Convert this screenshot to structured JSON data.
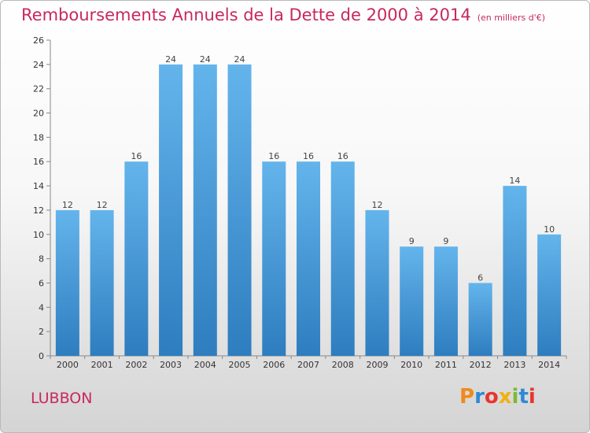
{
  "title": "Remboursements Annuels de la Dette de 2000 à 2014",
  "unit": "(en milliers d'€)",
  "commune": "LUBBON",
  "logo": {
    "text": "Proxiti",
    "colors": [
      "#f08a1c",
      "#2c8ad6",
      "#e8362d",
      "#f0b10f",
      "#7cba35",
      "#2c8ad6",
      "#e8362d"
    ]
  },
  "colors": {
    "bar_top": "#64b4ec",
    "bar_bottom": "#2e7dbf",
    "accent": "#c8285a",
    "grid": "#999999"
  },
  "chart_data": {
    "type": "bar",
    "title": "Remboursements Annuels de la Dette de 2000 à 2014",
    "unit": "(en milliers d'€)",
    "categories": [
      "2000",
      "2001",
      "2002",
      "2003",
      "2004",
      "2005",
      "2006",
      "2007",
      "2008",
      "2009",
      "2010",
      "2011",
      "2012",
      "2013",
      "2014"
    ],
    "values": [
      12,
      12,
      16,
      24,
      24,
      24,
      16,
      16,
      16,
      12,
      9,
      9,
      6,
      14,
      10
    ],
    "ylim": [
      0,
      26
    ],
    "yticks": [
      0,
      2,
      4,
      6,
      8,
      10,
      12,
      14,
      16,
      18,
      20,
      22,
      24,
      26
    ],
    "grid": false,
    "data_labels": true
  }
}
